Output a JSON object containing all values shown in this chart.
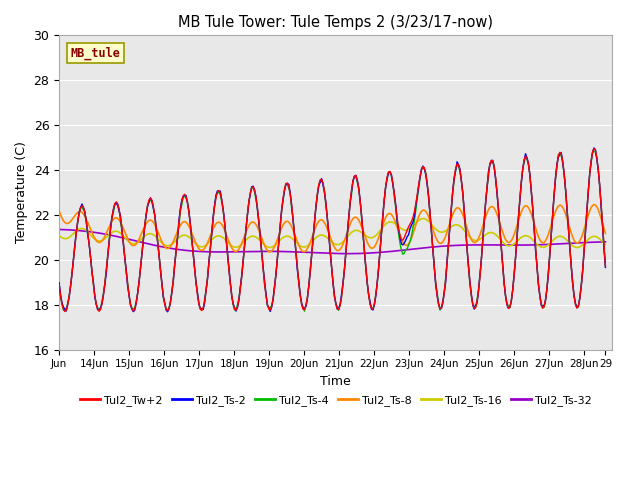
{
  "title": "MB Tule Tower: Tule Temps 2 (3/23/17-now)",
  "xlabel": "Time",
  "ylabel": "Temperature (C)",
  "ylim": [
    16,
    30
  ],
  "bg_color": "#e8e8e8",
  "fig_color": "#ffffff",
  "annotation_text": "MB_tule",
  "annotation_color": "#8b0000",
  "annotation_bg": "#ffffcc",
  "annotation_border": "#999900",
  "series": {
    "Tul2_Tw+2": {
      "color": "#ff0000",
      "lw": 1.0
    },
    "Tul2_Ts-2": {
      "color": "#0000ff",
      "lw": 1.0
    },
    "Tul2_Ts-4": {
      "color": "#00bb00",
      "lw": 1.0
    },
    "Tul2_Ts-8": {
      "color": "#ff8800",
      "lw": 1.2
    },
    "Tul2_Ts-16": {
      "color": "#cccc00",
      "lw": 1.2
    },
    "Tul2_Ts-32": {
      "color": "#9900cc",
      "lw": 1.2
    }
  },
  "xtick_labels": [
    "Jun",
    "14Jun",
    "15Jun",
    "16Jun",
    "17Jun",
    "18Jun",
    "19Jun",
    "20Jun",
    "21Jun",
    "22Jun",
    "23Jun",
    "24Jun",
    "25Jun",
    "26Jun",
    "27Jun",
    "28Jun",
    "29"
  ],
  "ytick_vals": [
    16,
    18,
    20,
    22,
    24,
    26,
    28,
    30
  ]
}
